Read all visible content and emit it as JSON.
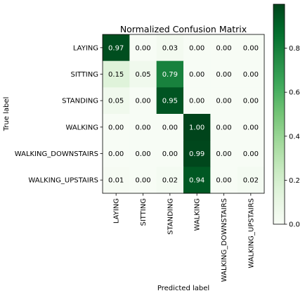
{
  "chart_data": {
    "type": "heatmap",
    "title": "Normalized Confusion Matrix",
    "xlabel": "Predicted label",
    "ylabel": "True label",
    "row_labels": [
      "LAYING",
      "SITTING",
      "STANDING",
      "WALKING",
      "WALKING_DOWNSTAIRS",
      "WALKING_UPSTAIRS"
    ],
    "col_labels": [
      "LAYING",
      "SITTING",
      "STANDING",
      "WALKING",
      "WALKING_DOWNSTAIRS",
      "WALKING_UPSTAIRS"
    ],
    "matrix": [
      [
        0.97,
        0.0,
        0.03,
        0.0,
        0.0,
        0.0
      ],
      [
        0.15,
        0.05,
        0.79,
        0.0,
        0.0,
        0.0
      ],
      [
        0.05,
        0.0,
        0.95,
        0.0,
        0.0,
        0.0
      ],
      [
        0.0,
        0.0,
        0.0,
        1.0,
        0.0,
        0.0
      ],
      [
        0.0,
        0.0,
        0.0,
        0.99,
        0.0,
        0.0
      ],
      [
        0.01,
        0.0,
        0.02,
        0.94,
        0.0,
        0.02
      ]
    ],
    "colormap": "Greens",
    "colors": {
      "low": "#f7fcf5",
      "high": "#00441b"
    },
    "colorbar": {
      "range": [
        0,
        1
      ],
      "ticks": [
        0.0,
        0.2,
        0.4,
        0.6,
        0.8
      ],
      "tick_labels": [
        "0.0",
        "0.2",
        "0.4",
        "0.6",
        "0.8"
      ]
    }
  }
}
